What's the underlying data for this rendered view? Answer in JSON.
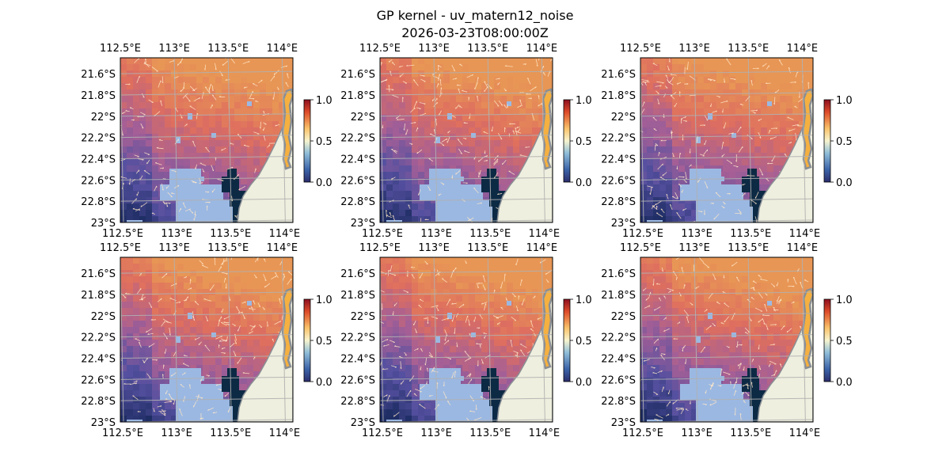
{
  "figure": {
    "title_line1": "GP kernel - uv_matern12_noise",
    "title_line2": "2026-03-23T08:00:00Z"
  },
  "axes": {
    "lon_ticks": [
      "112.5°E",
      "113°E",
      "113.5°E",
      "114°E"
    ],
    "lat_ticks": [
      "21.6°S",
      "21.8°S",
      "22°S",
      "22.2°S",
      "22.4°S",
      "22.6°S",
      "22.8°S",
      "23°S"
    ],
    "lon_range": [
      112.5,
      114.1
    ],
    "lat_range": [
      -23.0,
      -21.45
    ],
    "gridlines": true
  },
  "colorbar": {
    "ticks": [
      "0.0",
      "0.5",
      "1.0"
    ],
    "range": [
      0.0,
      1.0
    ],
    "colormap": "RdYlBu_r-like (dark blue → pale yellow → dark red)"
  },
  "colors": {
    "land": "#efefdf",
    "masked_ocean": "#9bb8e2",
    "coast": "#8a8f95",
    "grid": "#b0b0b0",
    "vectors": "#ffe8c8"
  },
  "panels_count": 6
}
